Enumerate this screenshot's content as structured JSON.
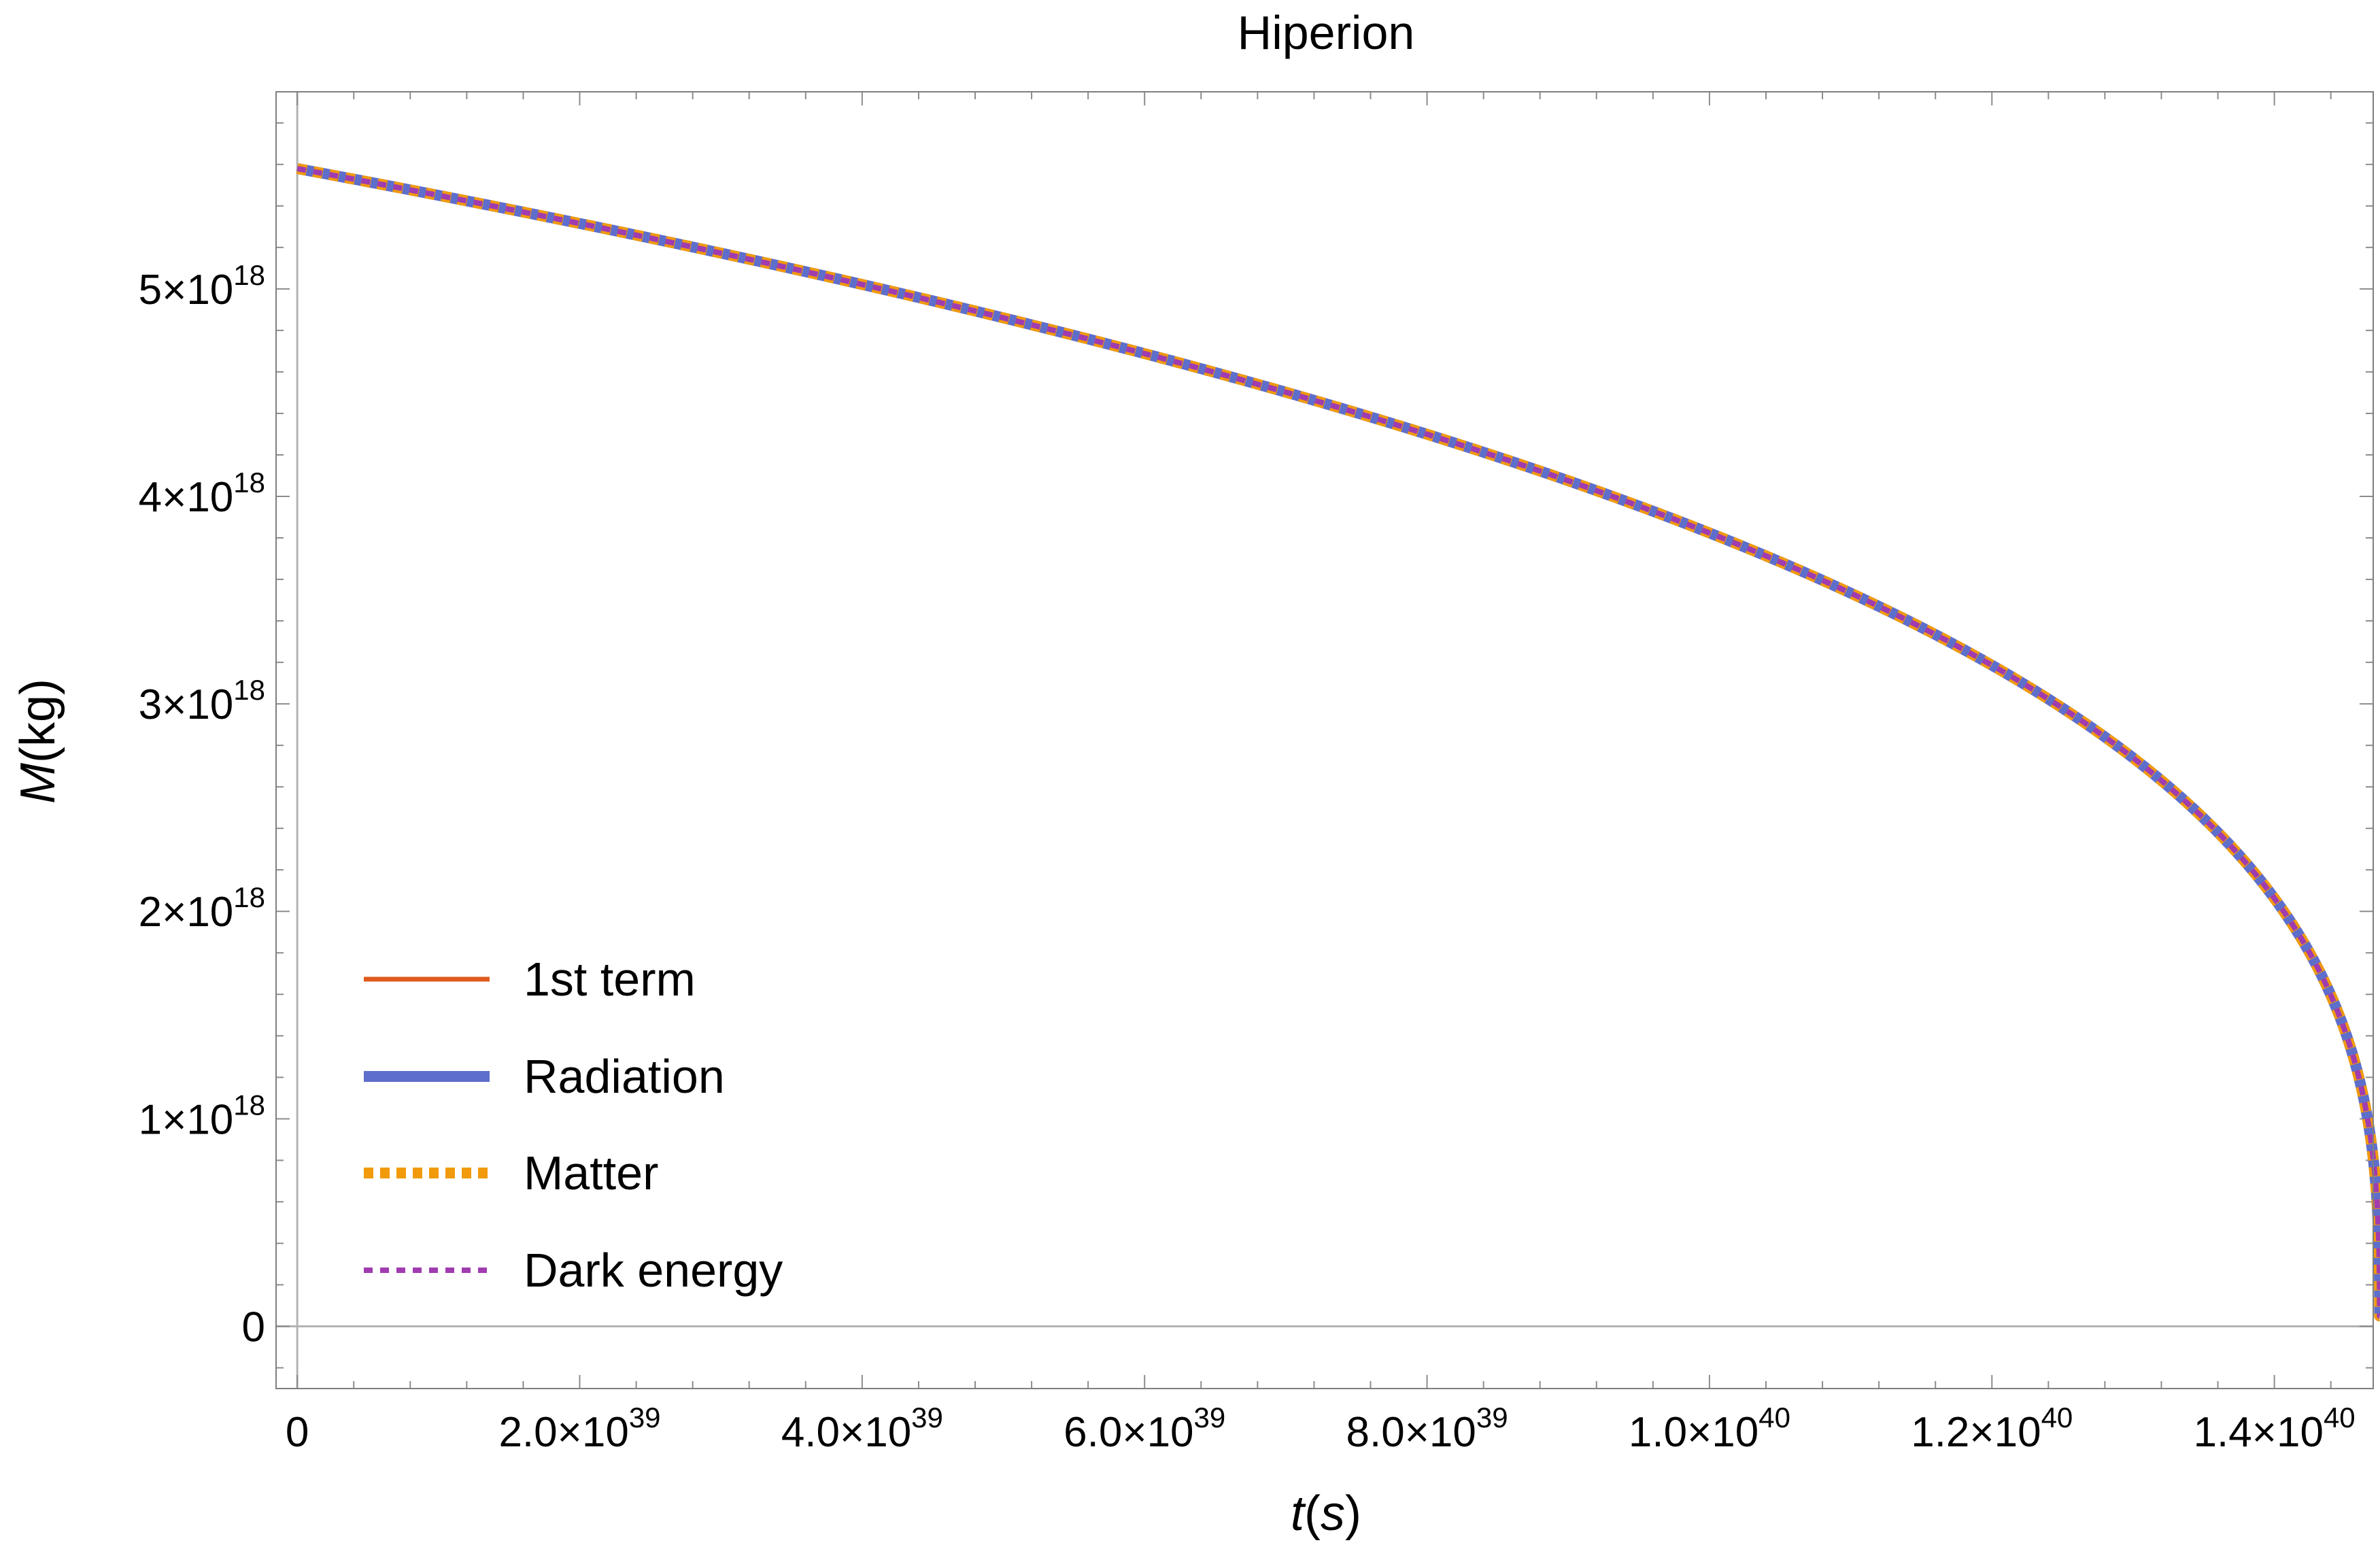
{
  "chart_data": {
    "type": "line",
    "title": "Hiperion",
    "xlabel": {
      "var": "t",
      "unit": "s"
    },
    "ylabel": {
      "var": "M",
      "unit": "kg"
    },
    "xlim": [
      -1.5e+38,
      1.47e+40
    ],
    "ylim": [
      -3e+17,
      5.95e+18
    ],
    "x_ticks": [
      {
        "value": 0,
        "mantissa": "0",
        "exp": ""
      },
      {
        "value": 2e+39,
        "mantissa": "2.0×10",
        "exp": "39"
      },
      {
        "value": 4e+39,
        "mantissa": "4.0×10",
        "exp": "39"
      },
      {
        "value": 6e+39,
        "mantissa": "6.0×10",
        "exp": "39"
      },
      {
        "value": 8e+39,
        "mantissa": "8.0×10",
        "exp": "39"
      },
      {
        "value": 1e+40,
        "mantissa": "1.0×10",
        "exp": "40"
      },
      {
        "value": 1.2e+40,
        "mantissa": "1.2×10",
        "exp": "40"
      },
      {
        "value": 1.4e+40,
        "mantissa": "1.4×10",
        "exp": "40"
      }
    ],
    "y_ticks": [
      {
        "value": 0,
        "mantissa": "0",
        "exp": ""
      },
      {
        "value": 1e+18,
        "mantissa": "1×10",
        "exp": "18"
      },
      {
        "value": 2e+18,
        "mantissa": "2×10",
        "exp": "18"
      },
      {
        "value": 3e+18,
        "mantissa": "3×10",
        "exp": "18"
      },
      {
        "value": 4e+18,
        "mantissa": "4×10",
        "exp": "18"
      },
      {
        "value": 5e+18,
        "mantissa": "5×10",
        "exp": "18"
      }
    ],
    "model": {
      "description": "M(t) = M0 * (1 - t/t_end)^(1/3)",
      "M0": 5.58e+18,
      "t_end": 1.4745e+40
    },
    "series": [
      {
        "name": "1st term",
        "color": "#e05a1d",
        "style": "solid"
      },
      {
        "name": "Radiation",
        "color": "#5e6ecb",
        "style": "solid-thick"
      },
      {
        "name": "Matter",
        "color": "#f09a0c",
        "style": "dotted"
      },
      {
        "name": "Dark energy",
        "color": "#a03cb0",
        "style": "dashed"
      }
    ],
    "legend_position": "bottom-left",
    "grid": false,
    "axis_color": "#b3b3b3",
    "frame_color": "#7f7f7f"
  }
}
